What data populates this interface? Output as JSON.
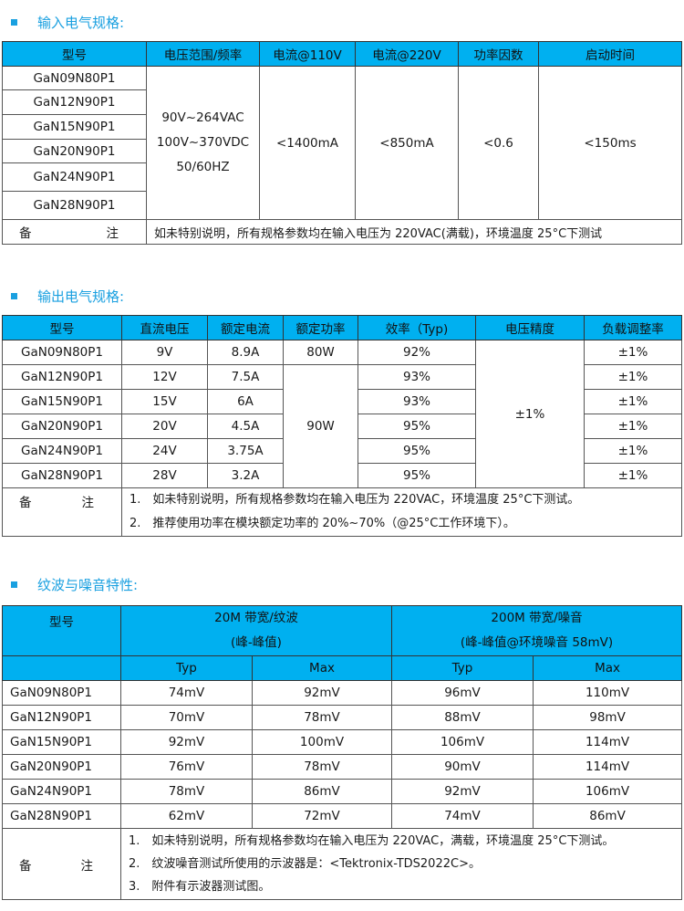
{
  "input": {
    "title": "输入电气规格:",
    "headers": [
      "型号",
      "电压范围/频率",
      "电流@110V",
      "电流@220V",
      "功率因数",
      "启动时间"
    ],
    "models": [
      "GaN09N80P1",
      "GaN12N90P1",
      "GaN15N90P1",
      "GaN20N90P1",
      "GaN24N90P1",
      "GaN28N90P1"
    ],
    "voltage": [
      "90V~264VAC",
      "100V~370VDC",
      "50/60HZ"
    ],
    "current110": "<1400mA",
    "current220": "<850mA",
    "pf": "<0.6",
    "startup": "<150ms",
    "note_label": "备　注",
    "note": "如未特别说明，所有规格参数均在输入电压为 220VAC(满载)，环境温度 25°C下测试"
  },
  "output": {
    "title": "输出电气规格:",
    "headers": [
      "型号",
      "直流电压",
      "额定电流",
      "额定功率",
      "效率（Typ)",
      "电压精度",
      "负载调整率"
    ],
    "rows": [
      [
        "GaN09N80P1",
        "9V",
        "8.9A",
        "92%",
        "±1%"
      ],
      [
        "GaN12N90P1",
        "12V",
        "7.5A",
        "93%",
        "±1%"
      ],
      [
        "GaN15N90P1",
        "15V",
        "6A",
        "93%",
        "±1%"
      ],
      [
        "GaN20N90P1",
        "20V",
        "4.5A",
        "95%",
        "±1%"
      ],
      [
        "GaN24N90P1",
        "24V",
        "3.75A",
        "95%",
        "±1%"
      ],
      [
        "GaN28N90P1",
        "28V",
        "3.2A",
        "95%",
        "±1%"
      ]
    ],
    "power_80": "80W",
    "power_90": "90W",
    "accuracy": "±1%",
    "note_label": "备　注",
    "notes": [
      "1.　如未特别说明，所有规格参数均在输入电压为 220VAC，环境温度 25°C下测试。",
      "2.　推荐使用功率在模块额定功率的 20%~70%（@25°C工作环境下）。"
    ]
  },
  "ripple": {
    "title": "纹波与噪音特性:",
    "h_model": "型号",
    "h_ripple": [
      "20M 带宽/纹波",
      "(峰-峰值)"
    ],
    "h_noise": [
      "200M 带宽/噪音",
      "(峰-峰值@环境噪音 58mV)"
    ],
    "sub": [
      "Typ",
      "Max",
      "Typ",
      "Max"
    ],
    "rows": [
      [
        "GaN09N80P1",
        "74mV",
        "92mV",
        "96mV",
        "110mV"
      ],
      [
        "GaN12N90P1",
        "70mV",
        "78mV",
        "88mV",
        "98mV"
      ],
      [
        "GaN15N90P1",
        "92mV",
        "100mV",
        "106mV",
        "114mV"
      ],
      [
        "GaN20N90P1",
        "76mV",
        "78mV",
        "90mV",
        "114mV"
      ],
      [
        "GaN24N90P1",
        "78mV",
        "86mV",
        "92mV",
        "106mV"
      ],
      [
        "GaN28N90P1",
        "62mV",
        "72mV",
        "74mV",
        "86mV"
      ]
    ],
    "note_label": "备　注",
    "notes": [
      "1.　如未特别说明，所有规格参数均在输入电压为 220VAC，满载，环境温度 25°C下测试。",
      "2.　纹波噪音测试所使用的示波器是：<Tektronix-TDS2022C>。",
      "3.　附件有示波器测试图。"
    ]
  },
  "colors": {
    "header_bg": "#00b0f0",
    "title": "#1aa0e0"
  }
}
